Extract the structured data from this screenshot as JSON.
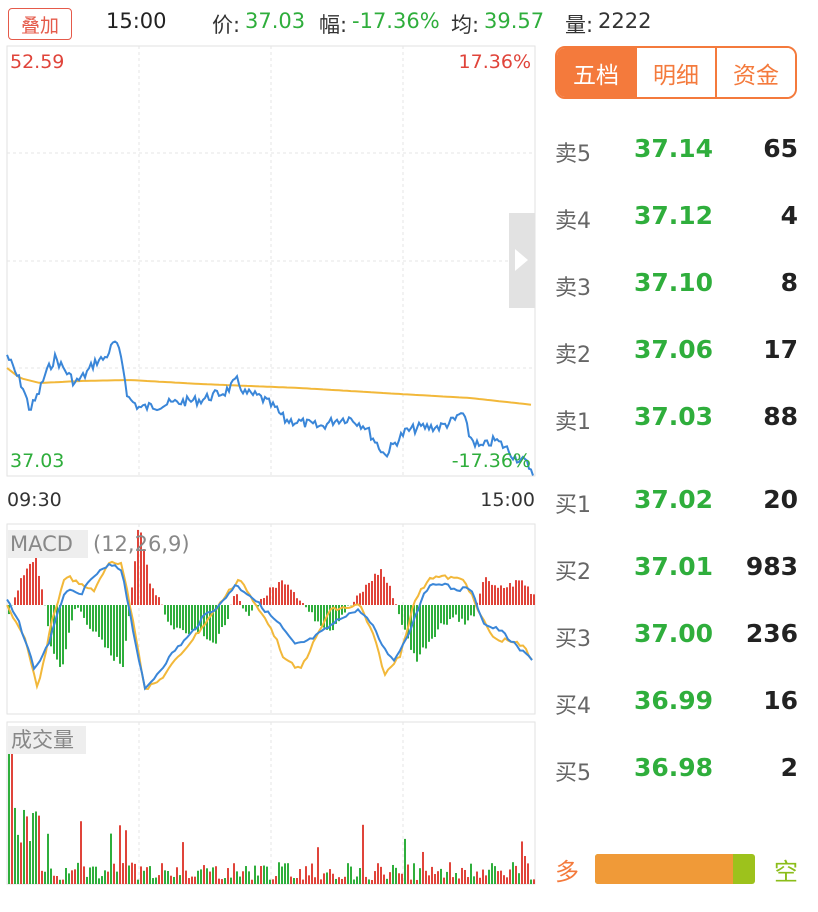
{
  "topbar": {
    "overlay_label": "叠加",
    "time": "15:00",
    "price_label": "价:",
    "price_value": "37.03",
    "change_label": "幅:",
    "change_value": "-17.36%",
    "avg_label": "均:",
    "avg_value": "39.57",
    "volume_label": "量:",
    "volume_value": "2222"
  },
  "price_chart": {
    "max_price": "52.59",
    "max_pct": "17.36%",
    "min_price": "37.03",
    "min_pct": "-17.36%",
    "time_start": "09:30",
    "time_end": "15:00"
  },
  "macd": {
    "name": "MACD",
    "params": "(12,26,9)"
  },
  "volume": {
    "label": "成交量"
  },
  "tabs": [
    "五档",
    "明细",
    "资金"
  ],
  "order_book": {
    "asks": [
      {
        "label": "卖5",
        "price": "37.14",
        "volume": "65"
      },
      {
        "label": "卖4",
        "price": "37.12",
        "volume": "4"
      },
      {
        "label": "卖3",
        "price": "37.10",
        "volume": "8"
      },
      {
        "label": "卖2",
        "price": "37.06",
        "volume": "17"
      },
      {
        "label": "卖1",
        "price": "37.03",
        "volume": "88"
      }
    ],
    "bids": [
      {
        "label": "买1",
        "price": "37.02",
        "volume": "20"
      },
      {
        "label": "买2",
        "price": "37.01",
        "volume": "983"
      },
      {
        "label": "买3",
        "price": "37.00",
        "volume": "236"
      },
      {
        "label": "买4",
        "price": "36.99",
        "volume": "16"
      },
      {
        "label": "买5",
        "price": "36.98",
        "volume": "2"
      }
    ]
  },
  "ratio": {
    "long_label": "多",
    "short_label": "空",
    "long_fraction": 0.86
  },
  "colors": {
    "up": "#e0443a",
    "down": "#2fae3c",
    "price_line": "#3a86d8",
    "avg_line": "#f2b83a",
    "accent": "#f47a3c"
  }
}
